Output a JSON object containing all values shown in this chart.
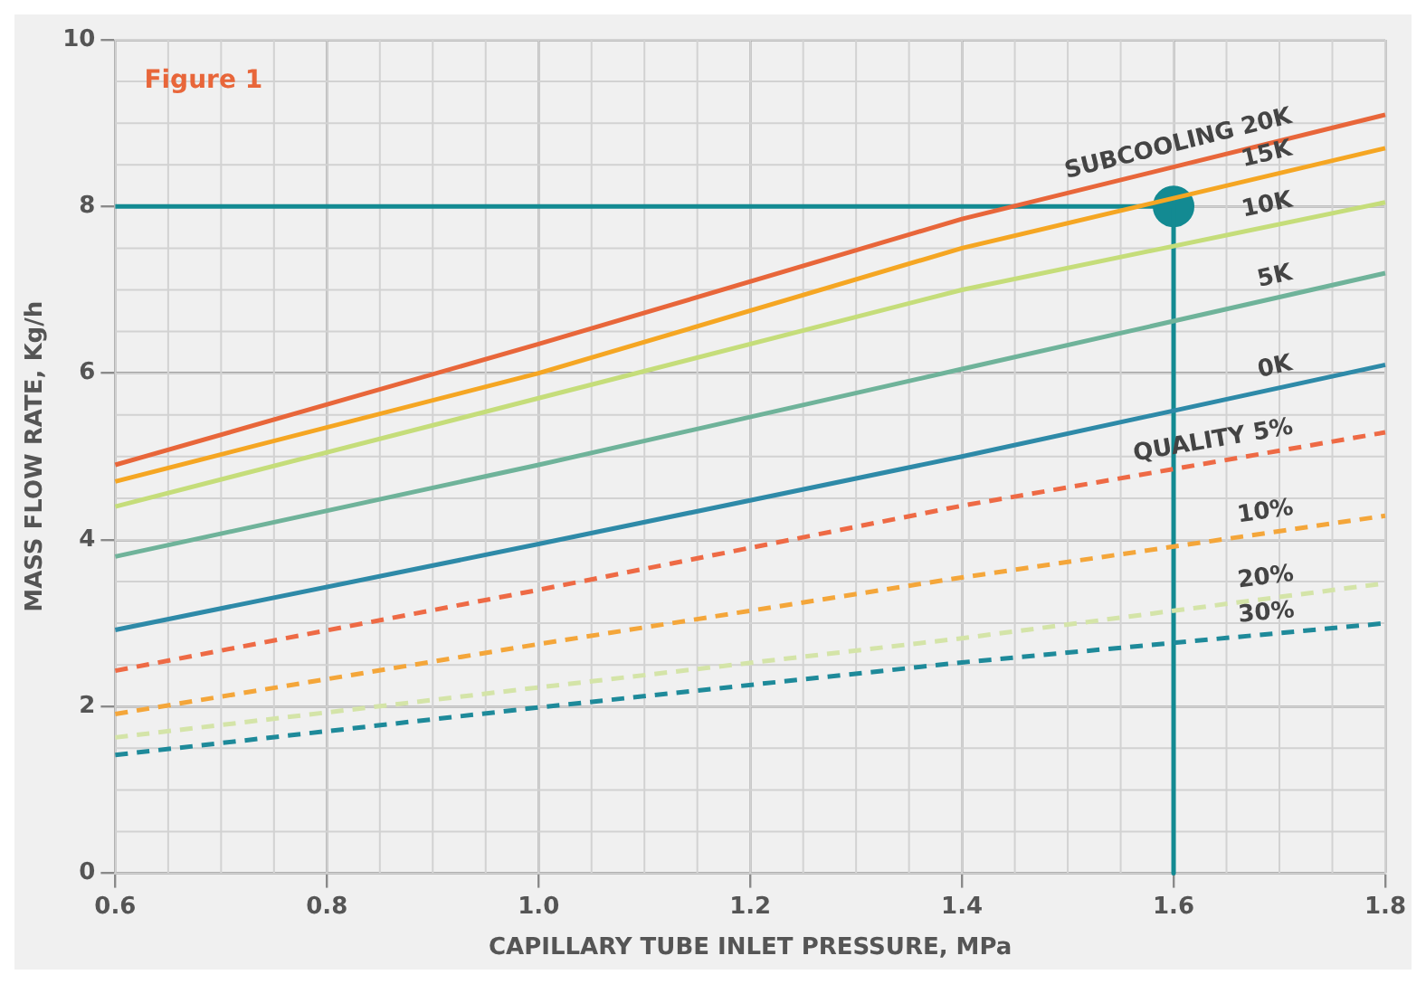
{
  "chart_data": {
    "type": "line",
    "title": "Figure 1",
    "xlabel": "CAPILLARY TUBE INLET PRESSURE, MPa",
    "ylabel": "MASS FLOW RATE, Kg/h",
    "xlim": [
      0.6,
      1.8
    ],
    "ylim": [
      0,
      10
    ],
    "xticks": [
      0.6,
      0.8,
      {
        "value": 1,
        "label": "1.0"
      },
      1.2,
      1.4,
      1.6,
      1.8
    ],
    "yticks": [
      0,
      2,
      4,
      6,
      8,
      10
    ],
    "grid": true,
    "legend": false,
    "marker": "none",
    "series": [
      {
        "name": "SUBCOOLING 20K",
        "color": "#e8663a",
        "line_style": "solid",
        "x": [
          0.6,
          1.0,
          1.4,
          1.8
        ],
        "values": [
          4.9,
          6.35,
          7.85,
          9.1
        ]
      },
      {
        "name": "15K",
        "color": "#f5a623",
        "line_style": "solid",
        "x": [
          0.6,
          1.0,
          1.4,
          1.8
        ],
        "values": [
          4.7,
          6.0,
          7.5,
          8.7
        ]
      },
      {
        "name": "10K",
        "color": "#c5dd7a",
        "line_style": "solid",
        "x": [
          0.6,
          1.0,
          1.4,
          1.8
        ],
        "values": [
          4.4,
          5.7,
          7.0,
          8.05
        ]
      },
      {
        "name": "5K",
        "color": "#6fb39a",
        "line_style": "solid",
        "x": [
          0.6,
          1.0,
          1.4,
          1.8
        ],
        "values": [
          3.8,
          4.9,
          6.05,
          7.2
        ]
      },
      {
        "name": "0K",
        "color": "#2e8aa8",
        "line_style": "solid",
        "x": [
          0.6,
          1.0,
          1.4,
          1.8
        ],
        "values": [
          2.92,
          3.95,
          5.0,
          6.1
        ]
      },
      {
        "name": "QUALITY 5%",
        "color": "#ee6a45",
        "line_style": "dashed",
        "x": [
          0.6,
          1.0,
          1.4,
          1.8
        ],
        "values": [
          2.43,
          3.4,
          4.41,
          5.29
        ]
      },
      {
        "name": "10%",
        "color": "#f4a63a",
        "line_style": "dashed",
        "x": [
          0.6,
          1.0,
          1.4,
          1.8
        ],
        "values": [
          1.91,
          2.75,
          3.55,
          4.29
        ]
      },
      {
        "name": "20%",
        "color": "#d4e4a8",
        "line_style": "dashed",
        "x": [
          0.6,
          1.0,
          1.4,
          1.8
        ],
        "values": [
          1.63,
          2.23,
          2.82,
          3.48
        ]
      },
      {
        "name": "30%",
        "color": "#1e8a9a",
        "line_style": "dashed",
        "x": [
          0.6,
          1.0,
          1.4,
          1.8
        ],
        "values": [
          1.42,
          1.99,
          2.53,
          3.0
        ]
      },
      {
        "color": "#138a92",
        "line_style": "solid",
        "x": [
          0.6,
          1.6,
          1.6
        ],
        "values": [
          8,
          8,
          0
        ]
      },
      {
        "type": "scatter",
        "color": "#138a92",
        "marker": "circle",
        "x": [
          1.6
        ],
        "values": [
          8
        ]
      }
    ]
  }
}
